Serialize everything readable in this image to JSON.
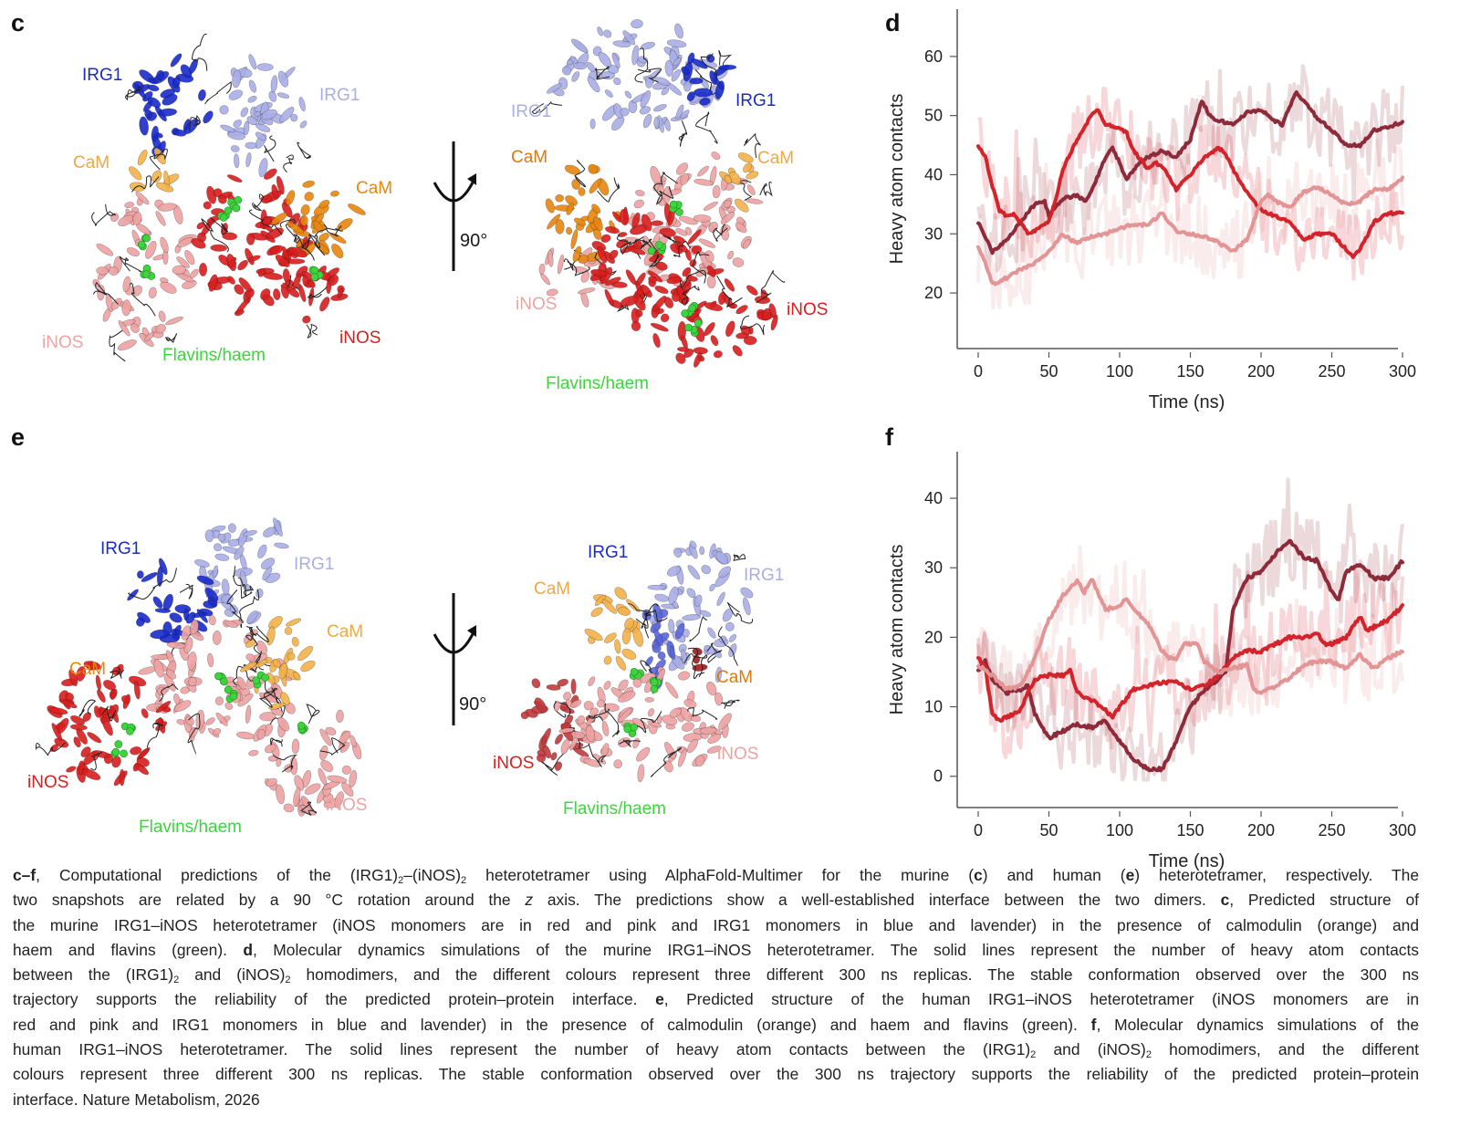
{
  "panels": {
    "c": {
      "letter": "c",
      "left_view": {
        "irg1_a": "IRG1",
        "irg1_b": "IRG1",
        "cam_a": "CaM",
        "cam_b": "CaM",
        "inos_a": "iNOS",
        "inos_b": "iNOS",
        "flavins": "Flavins/haem"
      },
      "rotation": "90°",
      "right_view": {
        "irg1_a": "IRG1",
        "irg1_b": "IRG1",
        "cam_a": "CaM",
        "cam_b": "CaM",
        "inos_a": "iNOS",
        "inos_b": "iNOS",
        "flavins": "Flavins/haem"
      }
    },
    "e": {
      "letter": "e",
      "left_view": {
        "irg1_a": "IRG1",
        "irg1_b": "IRG1",
        "cam_a": "CaM",
        "cam_b": "CaM",
        "inos_a": "iNOS",
        "inos_b": "iNOS",
        "flavins": "Flavins/haem"
      },
      "rotation": "90°",
      "right_view": {
        "irg1_a": "IRG1",
        "irg1_b": "IRG1",
        "cam_a": "CaM",
        "cam_b": "CaM",
        "inos_a": "iNOS",
        "inos_b": "iNOS",
        "flavins": "Flavins/haem"
      }
    },
    "d": {
      "letter": "d"
    },
    "f": {
      "letter": "f"
    }
  },
  "colors": {
    "irg1_blue": "#1a2bc8",
    "irg1_lavender": "#a9aee6",
    "cam_orange": "#e8860f",
    "cam_light_orange": "#f3b24a",
    "inos_red": "#d81e1e",
    "inos_pink": "#eea3a3",
    "flavins_green": "#3fd43f",
    "replica_1": "#8e2b3a",
    "replica_2": "#d3232b",
    "replica_3": "#e39494"
  },
  "chart_data": [
    {
      "panel": "d",
      "type": "line",
      "xlabel": "Time (ns)",
      "ylabel": "Heavy atom contacts",
      "xlim": [
        0,
        300
      ],
      "ylim": [
        10.6,
        68
      ],
      "xticks": [
        "0",
        "50",
        "100",
        "150",
        "200",
        "250",
        "300"
      ],
      "yticks": [
        "20",
        "30",
        "40",
        "50",
        "60"
      ],
      "grid": false,
      "legend": "none",
      "note_raw_traces": "faint unsmoothed traces behind each solid line",
      "series": [
        {
          "color": "#8e2b3a",
          "x": [
            0,
            10,
            20,
            30,
            40,
            47,
            50,
            60,
            70,
            75,
            80,
            90,
            95,
            100,
            105,
            110,
            120,
            130,
            140,
            150,
            158,
            165,
            180,
            190,
            200,
            210,
            215,
            225,
            240,
            250,
            260,
            270,
            280,
            290,
            300
          ],
          "y": [
            32,
            27,
            29,
            32,
            35,
            35.5,
            33,
            36,
            36.5,
            35.5,
            37,
            43,
            44.5,
            42,
            39,
            41,
            43,
            44,
            43,
            46,
            52.5,
            49.5,
            48.5,
            50.5,
            51,
            49,
            48.5,
            54,
            49.5,
            47.5,
            45,
            45,
            47.5,
            48,
            49
          ]
        },
        {
          "color": "#d3232b",
          "x": [
            0,
            5,
            10,
            15,
            20,
            25,
            30,
            35,
            40,
            50,
            55,
            60,
            70,
            80,
            85,
            90,
            100,
            105,
            110,
            120,
            125,
            130,
            140,
            150,
            160,
            170,
            175,
            180,
            190,
            200,
            210,
            220,
            230,
            240,
            250,
            260,
            265,
            270,
            280,
            290,
            300
          ],
          "y": [
            45,
            43,
            38,
            34,
            33,
            33.5,
            32,
            30,
            30.5,
            32,
            36,
            41,
            46,
            50,
            51,
            48.5,
            48,
            47,
            44,
            41,
            42,
            41.5,
            37.5,
            40,
            43,
            44.5,
            43.5,
            41,
            37,
            34,
            33,
            32,
            29,
            30,
            30,
            27.5,
            26,
            27.5,
            32,
            33.5,
            33.5
          ]
        },
        {
          "color": "#e39494",
          "x": [
            0,
            5,
            10,
            20,
            30,
            40,
            50,
            60,
            65,
            70,
            80,
            90,
            100,
            110,
            120,
            130,
            140,
            150,
            160,
            170,
            180,
            190,
            200,
            205,
            210,
            220,
            230,
            240,
            250,
            260,
            270,
            280,
            290,
            300
          ],
          "y": [
            28,
            25,
            21.5,
            22.5,
            24,
            25,
            27,
            30,
            29,
            28.5,
            29.5,
            30,
            31,
            31.5,
            31.5,
            33.5,
            30.5,
            30,
            29.5,
            28.5,
            27,
            29,
            35.5,
            36.5,
            35.5,
            34.5,
            37,
            38,
            36.5,
            35,
            35.5,
            37.5,
            37.5,
            39.5
          ]
        }
      ]
    },
    {
      "panel": "f",
      "type": "line",
      "xlabel": "Time (ns)",
      "ylabel": "Heavy atom contacts",
      "xlim": [
        0,
        300
      ],
      "ylim": [
        -4.5,
        46.7
      ],
      "xticks": [
        "0",
        "50",
        "100",
        "150",
        "200",
        "250",
        "300"
      ],
      "yticks": [
        "0",
        "10",
        "20",
        "30",
        "40"
      ],
      "grid": false,
      "legend": "none",
      "series": [
        {
          "color": "#8e2b3a",
          "x": [
            0,
            5,
            10,
            20,
            30,
            35,
            40,
            50,
            60,
            70,
            80,
            90,
            100,
            110,
            120,
            130,
            140,
            150,
            160,
            170,
            175,
            180,
            190,
            200,
            210,
            220,
            230,
            240,
            250,
            255,
            260,
            270,
            280,
            290,
            300
          ],
          "y": [
            15,
            16.5,
            14,
            12,
            12.5,
            13,
            9,
            5.5,
            6.5,
            7.5,
            7,
            8,
            5,
            2.5,
            1,
            1,
            5,
            10,
            12.5,
            14,
            15,
            24,
            28.5,
            29.5,
            32,
            34,
            31.5,
            31,
            26.5,
            25.5,
            29.5,
            30.5,
            28.5,
            28.5,
            31
          ]
        },
        {
          "color": "#d3232b",
          "x": [
            0,
            5,
            10,
            15,
            20,
            30,
            35,
            40,
            50,
            60,
            65,
            70,
            80,
            90,
            95,
            100,
            110,
            120,
            130,
            140,
            150,
            160,
            170,
            180,
            190,
            200,
            210,
            220,
            230,
            240,
            245,
            250,
            260,
            270,
            275,
            280,
            290,
            300
          ],
          "y": [
            17,
            15.5,
            9,
            8,
            8.5,
            9.5,
            12,
            14,
            14.5,
            14.5,
            15.5,
            12,
            11,
            9.5,
            8.5,
            10,
            12.5,
            13,
            13.5,
            13.5,
            12.5,
            13,
            14.5,
            17,
            18,
            18,
            19,
            20,
            20,
            20.5,
            19,
            19,
            20,
            23,
            21,
            21.5,
            22.5,
            24.5
          ]
        },
        {
          "color": "#e39494",
          "x": [
            0,
            10,
            20,
            30,
            40,
            50,
            60,
            70,
            75,
            80,
            90,
            100,
            105,
            110,
            120,
            130,
            135,
            140,
            145,
            155,
            160,
            170,
            180,
            190,
            195,
            200,
            210,
            220,
            230,
            240,
            250,
            260,
            270,
            280,
            290,
            300
          ],
          "y": [
            16,
            14.5,
            12.5,
            13,
            17,
            22.5,
            26,
            28,
            26.5,
            28.5,
            24,
            24.5,
            25.5,
            24,
            22,
            18,
            17,
            17,
            19,
            19,
            16.5,
            15,
            15.5,
            16,
            12.5,
            12,
            13,
            14,
            16,
            16.5,
            16.5,
            15.5,
            17.5,
            15.5,
            17,
            18
          ]
        }
      ]
    }
  ],
  "caption": {
    "lines": [
      [
        [
          "c–f",
          "b"
        ],
        [
          ", Computational predictions of the (IRG1)",
          ""
        ],
        [
          "2",
          "sub"
        ],
        [
          "–(iNOS)",
          ""
        ],
        [
          "2",
          "sub"
        ],
        [
          " heterotetramer using AlphaFold-Multimer for the murine (",
          ""
        ],
        [
          "c",
          "b"
        ],
        [
          ") and human (",
          ""
        ],
        [
          "e",
          "b"
        ],
        [
          ") heterotetramer, respectively. The",
          ""
        ]
      ],
      [
        [
          "two snapshots are related by a 90 °C rotation around the ",
          ""
        ],
        [
          "z",
          "i"
        ],
        [
          " axis. The predictions show a well-established interface between the two dimers. ",
          ""
        ],
        [
          "c",
          "b"
        ],
        [
          ", Predicted structure of",
          ""
        ]
      ],
      [
        [
          "the murine IRG1–iNOS heterotetramer (iNOS monomers are in red and pink and IRG1 monomers in blue and lavender) in the presence of calmodulin (orange) and",
          ""
        ]
      ],
      [
        [
          "haem and flavins (green). ",
          ""
        ],
        [
          "d",
          "b"
        ],
        [
          ", Molecular dynamics simulations of the murine IRG1–iNOS heterotetramer. The solid lines represent the number of heavy atom contacts",
          ""
        ]
      ],
      [
        [
          "between the (IRG1)",
          ""
        ],
        [
          "2",
          "sub"
        ],
        [
          " and (iNOS)",
          ""
        ],
        [
          "2",
          "sub"
        ],
        [
          " homodimers, and the different colours represent three different 300 ns replicas. The stable conformation observed over the 300 ns",
          ""
        ]
      ],
      [
        [
          "trajectory supports the reliability of the predicted protein–protein interface. ",
          ""
        ],
        [
          "e",
          "b"
        ],
        [
          ", Predicted structure of the human IRG1–iNOS heterotetramer (iNOS monomers are in",
          ""
        ]
      ],
      [
        [
          "red and pink and IRG1 monomers in blue and lavender) in the presence of calmodulin (orange) and haem and flavins (green). ",
          ""
        ],
        [
          "f",
          "b"
        ],
        [
          ", Molecular dynamics simulations of the",
          ""
        ]
      ],
      [
        [
          "human IRG1–iNOS heterotetramer. The solid lines represent the number of heavy atom contacts between the (IRG1)",
          ""
        ],
        [
          "2",
          "sub"
        ],
        [
          " and (iNOS)",
          ""
        ],
        [
          "2",
          "sub"
        ],
        [
          " homodimers, and the different",
          ""
        ]
      ],
      [
        [
          "colours represent three different 300 ns replicas. The stable conformation observed over the 300 ns trajectory supports the reliability of the predicted protein–protein",
          ""
        ]
      ],
      [
        [
          "interface. Nature Metabolism, 2026",
          ""
        ]
      ]
    ]
  }
}
